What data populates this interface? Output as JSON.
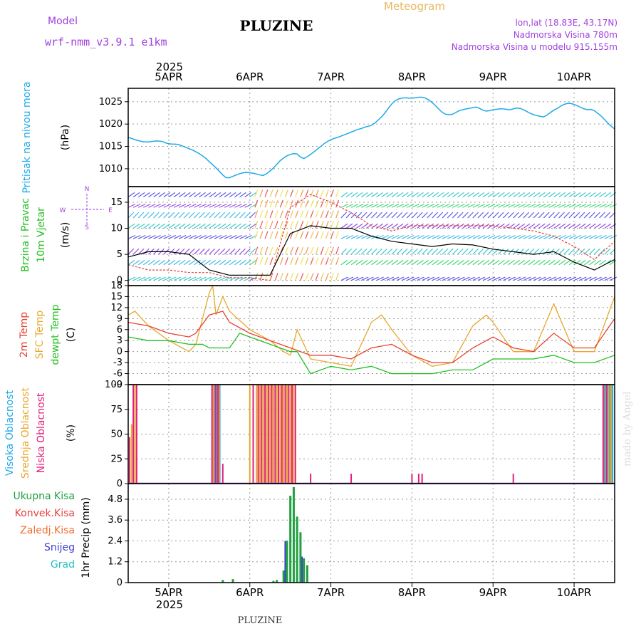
{
  "header": {
    "model_label": "Model",
    "model_name": "wrf-nmm_v3.9.1 e1km",
    "station": "PLUZINE",
    "product": "Meteogram",
    "coords": "lon,lat (18.83E, 43.17N)",
    "elevation": "Nadmorska Visina 780m",
    "model_elevation": "Nadmorska Visina u modelu 915.155m",
    "footer_station": "PLUZINE",
    "watermark": "made by Angel",
    "year": "2025"
  },
  "colors": {
    "pressure": "#1eaae8",
    "t2m": "#e84030",
    "sfc": "#e8a830",
    "dewpt": "#20c020",
    "high_cloud": "#20aae8",
    "mid_cloud": "#e8a830",
    "low_cloud": "#e0207a",
    "total_precip": "#20a040",
    "conv_precip": "#e84040",
    "freezing": "#f07030",
    "snow": "#4040d0",
    "hail": "#20c0c0",
    "wind_speed": "#000000",
    "gust": "#e84040"
  },
  "chart_data": [
    {
      "type": "line",
      "panel": "pressure",
      "ylabel": "Pritisak na nivou mora",
      "unit": "(hPa)",
      "ylim": [
        1006,
        1028
      ],
      "yticks": [
        1010,
        1015,
        1020,
        1025
      ],
      "x_days": [
        "5APR",
        "6APR",
        "7APR",
        "8APR",
        "9APR",
        "10APR"
      ],
      "grid": true,
      "series": [
        {
          "name": "Pritisak na nivou mora",
          "x": [
            0,
            1,
            2,
            3,
            4,
            5,
            6,
            7,
            8,
            9,
            10,
            11,
            12,
            13,
            14,
            15,
            16,
            17,
            18,
            19,
            20,
            21,
            22,
            23,
            24,
            25,
            26,
            27,
            28,
            29,
            30,
            31,
            32,
            33,
            34,
            35,
            36,
            37,
            38,
            39,
            40,
            41,
            42,
            43,
            44,
            45,
            46,
            47,
            48,
            49,
            50,
            51,
            52,
            53,
            54,
            55,
            56,
            57,
            58,
            59,
            60,
            61,
            62,
            63,
            64,
            65,
            66,
            67,
            68,
            69,
            70,
            71,
            72,
            73,
            74,
            75,
            76,
            77,
            78,
            79,
            80,
            81,
            82,
            83,
            84,
            85,
            86,
            87,
            88,
            89,
            90,
            91,
            92,
            93,
            94,
            95,
            96,
            97,
            98,
            99,
            100,
            101,
            102,
            103,
            104,
            105,
            106,
            107,
            108,
            109,
            110,
            111,
            112,
            113,
            114,
            115,
            116,
            117,
            118,
            119,
            120,
            121,
            122,
            123,
            124,
            125,
            126,
            127,
            128,
            129,
            130,
            131,
            132,
            133,
            134,
            135,
            136,
            137,
            138,
            139,
            140,
            141,
            142,
            143,
            144
          ],
          "values": [
            1017,
            1016.8,
            1016.5,
            1016.3,
            1016.1,
            1016.0,
            1016.0,
            1016.1,
            1016.2,
            1016.2,
            1016.1,
            1015.8,
            1015.6,
            1015.5,
            1015.5,
            1015.4,
            1015.1,
            1014.8,
            1014.5,
            1014.2,
            1013.8,
            1013.4,
            1012.9,
            1012.3,
            1011.6,
            1010.9,
            1010.2,
            1009.4,
            1008.6,
            1008.0,
            1008.0,
            1008.3,
            1008.6,
            1008.9,
            1009.1,
            1009.2,
            1009.1,
            1009.0,
            1008.8,
            1008.6,
            1008.5,
            1008.9,
            1009.5,
            1010.2,
            1011.0,
            1011.8,
            1012.4,
            1012.9,
            1013.2,
            1013.4,
            1013.3,
            1012.6,
            1012.3,
            1012.7,
            1013.2,
            1013.8,
            1014.4,
            1015.0,
            1015.6,
            1016.1,
            1016.5,
            1016.8,
            1017.0,
            1017.3,
            1017.6,
            1017.9,
            1018.2,
            1018.5,
            1018.8,
            1019.0,
            1019.3,
            1019.5,
            1019.7,
            1020.2,
            1020.9,
            1021.6,
            1022.5,
            1023.5,
            1024.5,
            1025.2,
            1025.6,
            1025.8,
            1025.9,
            1025.8,
            1025.8,
            1025.9,
            1026.0,
            1026.0,
            1025.8,
            1025.4,
            1024.8,
            1024.1,
            1023.3,
            1022.6,
            1022.2,
            1022.1,
            1022.2,
            1022.6,
            1023.0,
            1023.2,
            1023.4,
            1023.5,
            1023.7,
            1023.8,
            1023.5,
            1023.1,
            1022.9,
            1023.0,
            1023.2,
            1023.3,
            1023.4,
            1023.4,
            1023.3,
            1023.2,
            1023.4,
            1023.6,
            1023.5,
            1023.2,
            1022.8,
            1022.4,
            1022.1,
            1021.9,
            1021.7,
            1021.6,
            1022.0,
            1022.6,
            1023.1,
            1023.5,
            1024.0,
            1024.4,
            1024.6,
            1024.6,
            1024.4,
            1024.1,
            1023.7,
            1023.4,
            1023.2,
            1023.3,
            1023.0,
            1022.4,
            1021.8,
            1021.0,
            1020.2,
            1019.5,
            1018.9
          ]
        }
      ]
    },
    {
      "type": "line",
      "panel": "wind",
      "ylabel": "10m Vjetar Brzina i Pravac",
      "unit": "(m/s)",
      "ylim": [
        -1,
        18
      ],
      "yticks": [
        0,
        5,
        10,
        15
      ],
      "direction_legend": [
        "N",
        "S",
        "W",
        "E"
      ],
      "grid": true,
      "series": [
        {
          "name": "speed",
          "x": [
            0,
            6,
            12,
            18,
            24,
            30,
            36,
            42,
            48,
            54,
            60,
            66,
            72,
            78,
            84,
            90,
            96,
            102,
            108,
            114,
            120,
            126,
            132,
            138,
            144
          ],
          "values": [
            4.5,
            5.5,
            5.5,
            5.0,
            2.0,
            1.0,
            1.0,
            1.0,
            9.0,
            10.5,
            10.0,
            10.0,
            8.5,
            7.5,
            7.0,
            6.5,
            7.0,
            6.8,
            6.0,
            5.5,
            5.0,
            5.5,
            3.5,
            2.0,
            4.0
          ]
        },
        {
          "name": "gust",
          "x": [
            0,
            6,
            12,
            18,
            24,
            30,
            36,
            42,
            48,
            54,
            60,
            66,
            72,
            78,
            84,
            90,
            96,
            102,
            108,
            114,
            120,
            126,
            132,
            138,
            144
          ],
          "values": [
            3.0,
            2.0,
            2.0,
            1.5,
            1.5,
            0.5,
            0.5,
            0.0,
            14.0,
            16.5,
            15.0,
            13.0,
            10.5,
            9.5,
            10.5,
            10.5,
            10.5,
            10.5,
            10.5,
            10.0,
            9.5,
            8.5,
            6.5,
            4.0,
            7.5
          ]
        }
      ]
    },
    {
      "type": "line",
      "panel": "temperature",
      "ylabels": [
        "2m Temp",
        "SFC Temp",
        "dewpt Temp"
      ],
      "unit": "(C)",
      "ylim": [
        -9,
        18
      ],
      "yticks": [
        -9,
        -6,
        -3,
        0,
        3,
        6,
        9,
        12,
        15,
        18
      ],
      "grid": true,
      "series": [
        {
          "name": "2m Temp",
          "x": [
            0,
            6,
            12,
            18,
            20,
            24,
            28,
            30,
            36,
            42,
            48,
            54,
            60,
            66,
            72,
            78,
            84,
            90,
            96,
            102,
            108,
            114,
            120,
            126,
            132,
            138,
            144
          ],
          "values": [
            8,
            7,
            5,
            4,
            5,
            10,
            11,
            8,
            5,
            3,
            1,
            -1,
            -1,
            -2,
            1,
            2,
            -1,
            -3,
            -3,
            1,
            4,
            1,
            0,
            5,
            1,
            1,
            9
          ]
        },
        {
          "name": "SFC Temp",
          "x": [
            0,
            2,
            6,
            12,
            18,
            20,
            24,
            25,
            26,
            28,
            30,
            36,
            42,
            46,
            48,
            50,
            54,
            60,
            66,
            72,
            75,
            78,
            84,
            90,
            96,
            102,
            106,
            108,
            114,
            120,
            126,
            132,
            138,
            144
          ],
          "values": [
            10,
            11,
            7,
            3,
            0,
            2,
            16,
            18,
            10,
            15,
            11,
            6,
            3,
            0,
            -1,
            6,
            -2,
            -3,
            -4,
            8,
            10,
            6,
            -1,
            -4,
            -3,
            7,
            10,
            8,
            0,
            0,
            13,
            0,
            0,
            15
          ]
        },
        {
          "name": "dewpt Temp",
          "x": [
            0,
            6,
            12,
            18,
            22,
            24,
            30,
            33,
            36,
            42,
            48,
            50,
            52,
            54,
            60,
            66,
            72,
            78,
            84,
            90,
            96,
            102,
            108,
            114,
            120,
            126,
            132,
            138,
            144
          ],
          "values": [
            4,
            3,
            3,
            2,
            2,
            1,
            1,
            5,
            4,
            2,
            0,
            0,
            -3,
            -6,
            -4,
            -5,
            -4,
            -6,
            -6,
            -6,
            -5,
            -5,
            -2,
            -2,
            -2,
            -1,
            -3,
            -3,
            -1
          ]
        }
      ]
    },
    {
      "type": "bar",
      "panel": "clouds",
      "ylabels": [
        "Visoka Oblacnost",
        "Srednja Oblacnost",
        "Niska Oblacnost"
      ],
      "unit": "(%)",
      "ylim": [
        0,
        100
      ],
      "yticks": [
        0,
        25,
        50,
        75,
        100
      ],
      "grid": true,
      "series": [
        {
          "name": "Visoka Oblacnost",
          "x": [
            25.5,
            26.3,
            27.1,
            141,
            141.8,
            142.6,
            143.4
          ],
          "values": [
            100,
            100,
            100,
            100,
            100,
            100,
            100
          ]
        },
        {
          "name": "Srednja Oblacnost",
          "x": [
            1,
            2,
            25.2,
            26,
            26.9,
            36,
            38,
            39,
            40,
            41,
            42,
            43,
            44,
            45,
            46,
            47,
            48,
            49,
            141.4,
            142.2,
            143
          ],
          "values": [
            60,
            100,
            100,
            100,
            100,
            100,
            100,
            100,
            100,
            100,
            100,
            100,
            100,
            100,
            100,
            100,
            100,
            100,
            100,
            100,
            100
          ]
        },
        {
          "name": "Niska Oblacnost",
          "x": [
            0.4,
            1.5,
            2.5,
            24.8,
            25.9,
            26.6,
            28,
            37,
            38.5,
            39.5,
            40.5,
            41.5,
            42.5,
            43.5,
            44.5,
            45.5,
            46.5,
            47.5,
            48.5,
            49.5,
            54,
            66,
            84,
            86,
            87,
            114,
            140.6,
            141.6
          ],
          "values": [
            47,
            100,
            100,
            100,
            100,
            100,
            20,
            100,
            100,
            100,
            100,
            100,
            100,
            100,
            100,
            100,
            100,
            100,
            100,
            100,
            10,
            10,
            10,
            10,
            10,
            10,
            100,
            100
          ]
        }
      ]
    },
    {
      "type": "bar",
      "panel": "precip",
      "ylabel": "1hr Precip",
      "unit": "(mm)",
      "ylim": [
        0,
        5.7
      ],
      "yticks": [
        0,
        1.2,
        2.4,
        3.6,
        4.8
      ],
      "legend": [
        "Ukupna Kisa",
        "Konvek.Kisa",
        "Zaledj.Kisa",
        "Snijeg",
        "Grad"
      ],
      "grid": true,
      "series": [
        {
          "name": "Ukupna Kisa",
          "x": [
            28,
            31,
            43,
            44,
            46,
            47,
            48,
            49,
            50,
            51,
            52,
            53
          ],
          "values": [
            0.15,
            0.2,
            0.1,
            0.15,
            0.7,
            2.4,
            5.0,
            5.5,
            3.8,
            2.9,
            1.4,
            1.0
          ]
        },
        {
          "name": "Snijeg",
          "x": [
            47,
            52
          ],
          "values": [
            2.4,
            1.5
          ]
        }
      ]
    }
  ]
}
